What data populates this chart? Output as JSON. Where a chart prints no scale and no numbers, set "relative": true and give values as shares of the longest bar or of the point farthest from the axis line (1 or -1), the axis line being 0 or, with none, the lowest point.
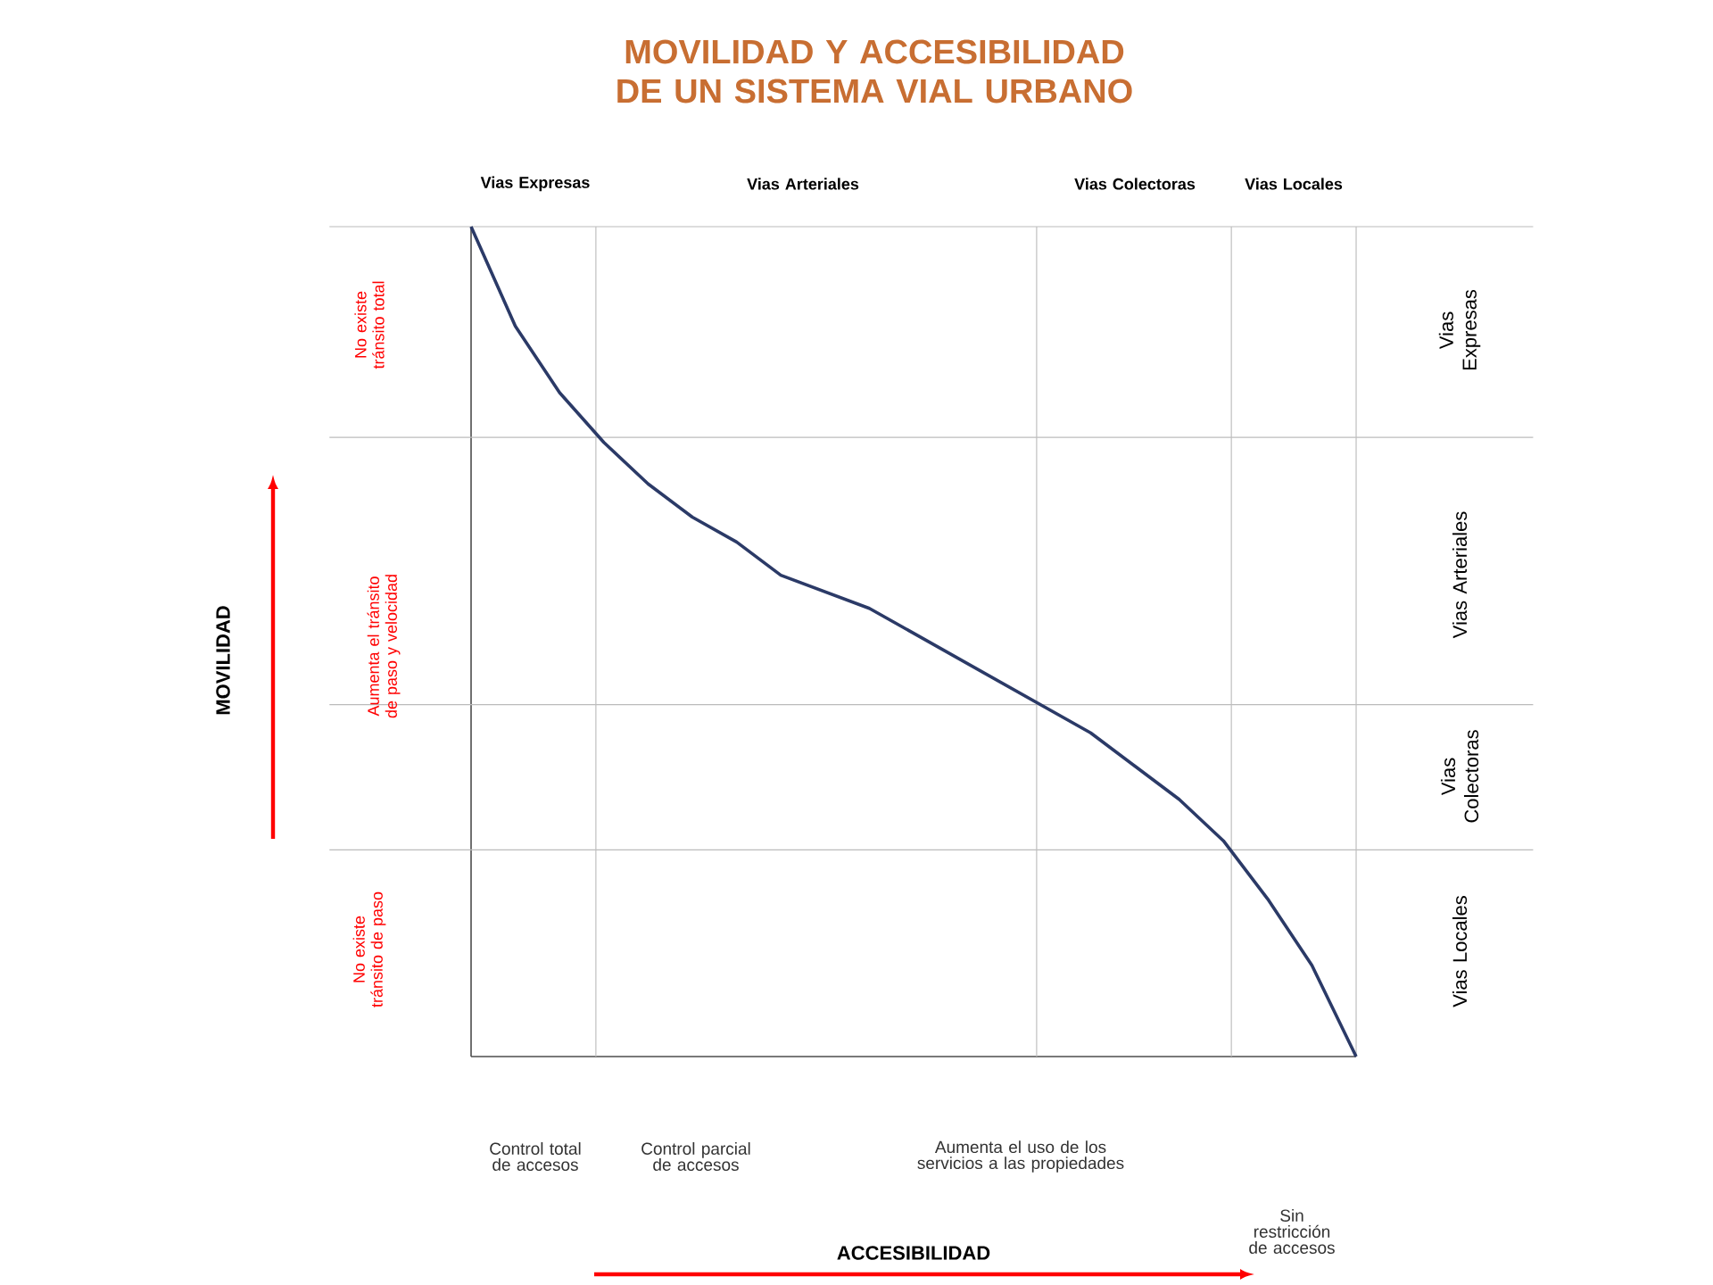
{
  "chart_data": {
    "type": "line",
    "title": "MOVILIDAD Y ACCESIBILIDAD DE UN SISTEMA VIAL URBANO",
    "relative": true,
    "categories": [
      null,
      null,
      null,
      null,
      null,
      null,
      null,
      null,
      null,
      null,
      null,
      null,
      null,
      null,
      null,
      null,
      null,
      null,
      null,
      null,
      null
    ],
    "series": [
      {
        "color": "#2b3a67",
        "values": [
          1.0,
          0.88,
          0.8,
          0.74,
          0.69,
          0.65,
          0.62,
          0.58,
          0.56,
          0.54,
          0.51,
          0.48,
          0.45,
          0.42,
          0.39,
          0.35,
          0.31,
          0.26,
          0.19,
          0.11,
          0.0
        ]
      }
    ],
    "ref_lines": [
      {
        "axis": "y",
        "value": 1.0,
        "color": "#bbbbbb"
      },
      {
        "axis": "y",
        "value": 0.746,
        "color": "#bbbbbb"
      },
      {
        "axis": "y",
        "value": 0.424,
        "color": "#bbbbbb"
      },
      {
        "axis": "y",
        "value": 0.249,
        "color": "#bbbbbb"
      }
    ],
    "annotations": [
      "Vias Expresas",
      "Vias Arteriales",
      "Vias Colectoras",
      "Vias Locales",
      "Vias Expresas",
      "Vias Arteriales",
      "Vias Colectoras",
      "Vias Locales",
      "No existe tránsito total",
      "Aumenta el tránsito de paso y velocidad",
      "No existe tránsito de paso",
      "Control total de accesos",
      "Control parcial de accesos",
      "Aumenta el uso de los servicios a las propiedades",
      "Sin restricción de accesos",
      "MOVILIDAD",
      "ACCESIBILIDAD"
    ]
  }
}
